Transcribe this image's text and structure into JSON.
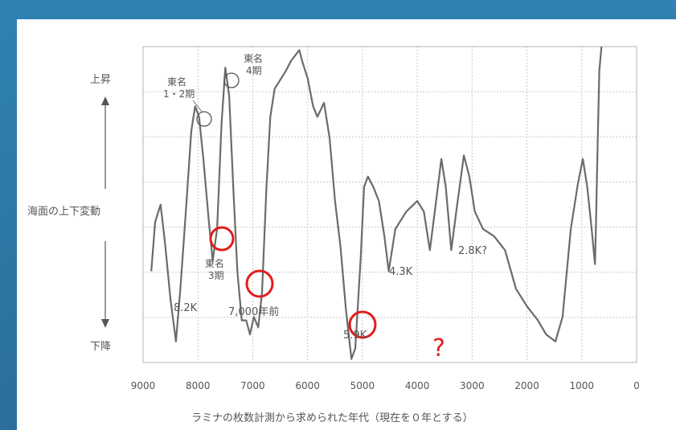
{
  "chart_data": {
    "type": "line",
    "xlabel": "ラミナの枚数計測から求められた年代（現在を０年とする）",
    "ylabel": "海面の上下変動",
    "y_top_label": "上昇",
    "y_bottom_label": "下降",
    "x_ticks": [
      "9000",
      "8000",
      "7000",
      "6000",
      "5000",
      "4000",
      "3000",
      "2000",
      "1000",
      "0"
    ],
    "x_reversed": true,
    "grid": true,
    "series": [
      {
        "values": [
          [
            8850,
            0.38
          ],
          [
            8780,
            0.52
          ],
          [
            8680,
            0.57
          ],
          [
            8600,
            0.46
          ],
          [
            8500,
            0.3
          ],
          [
            8400,
            0.18
          ],
          [
            8320,
            0.33
          ],
          [
            8220,
            0.55
          ],
          [
            8120,
            0.78
          ],
          [
            8050,
            0.85
          ],
          [
            7980,
            0.82
          ],
          [
            7900,
            0.7
          ],
          [
            7800,
            0.52
          ],
          [
            7730,
            0.41
          ],
          [
            7650,
            0.5
          ],
          [
            7570,
            0.8
          ],
          [
            7500,
            0.96
          ],
          [
            7430,
            0.88
          ],
          [
            7350,
            0.6
          ],
          [
            7280,
            0.38
          ],
          [
            7200,
            0.24
          ],
          [
            7120,
            0.24
          ],
          [
            7050,
            0.2
          ],
          [
            6980,
            0.25
          ],
          [
            6900,
            0.22
          ],
          [
            6830,
            0.32
          ],
          [
            6750,
            0.62
          ],
          [
            6680,
            0.82
          ],
          [
            6600,
            0.9
          ],
          [
            6520,
            0.92
          ],
          [
            6400,
            0.95
          ],
          [
            6300,
            0.98
          ],
          [
            6200,
            1.0
          ],
          [
            6150,
            1.01
          ],
          [
            6100,
            0.98
          ],
          [
            6000,
            0.93
          ],
          [
            5900,
            0.85
          ],
          [
            5820,
            0.82
          ],
          [
            5700,
            0.86
          ],
          [
            5600,
            0.76
          ],
          [
            5500,
            0.58
          ],
          [
            5400,
            0.45
          ],
          [
            5300,
            0.27
          ],
          [
            5200,
            0.13
          ],
          [
            5130,
            0.16
          ],
          [
            5030,
            0.42
          ],
          [
            4970,
            0.62
          ],
          [
            4900,
            0.65
          ],
          [
            4800,
            0.62
          ],
          [
            4700,
            0.58
          ],
          [
            4600,
            0.48
          ],
          [
            4520,
            0.38
          ],
          [
            4400,
            0.5
          ],
          [
            4200,
            0.55
          ],
          [
            4000,
            0.58
          ],
          [
            3880,
            0.55
          ],
          [
            3770,
            0.44
          ],
          [
            3680,
            0.55
          ],
          [
            3560,
            0.7
          ],
          [
            3480,
            0.62
          ],
          [
            3380,
            0.44
          ],
          [
            3280,
            0.56
          ],
          [
            3150,
            0.71
          ],
          [
            3050,
            0.65
          ],
          [
            2950,
            0.55
          ],
          [
            2800,
            0.5
          ],
          [
            2600,
            0.48
          ],
          [
            2400,
            0.44
          ],
          [
            2200,
            0.33
          ],
          [
            2000,
            0.28
          ],
          [
            1800,
            0.24
          ],
          [
            1650,
            0.2
          ],
          [
            1480,
            0.18
          ],
          [
            1350,
            0.25
          ],
          [
            1200,
            0.5
          ],
          [
            1070,
            0.63
          ],
          [
            980,
            0.7
          ],
          [
            900,
            0.62
          ],
          [
            820,
            0.5
          ],
          [
            760,
            0.4
          ],
          [
            740,
            0.52
          ],
          [
            710,
            0.75
          ],
          [
            680,
            0.95
          ],
          [
            640,
            1.2
          ]
        ]
      }
    ],
    "annotations": [
      {
        "text": "東名\n1・2期",
        "x": 8050,
        "circle": "black"
      },
      {
        "text": "東名\n4期",
        "x": 7500,
        "circle": "black"
      },
      {
        "text": "東名\n3期",
        "x": 7730,
        "circle": "red"
      },
      {
        "text": "8.2K",
        "x": 8400
      },
      {
        "text": "7,000年前",
        "x": 7050,
        "circle": "red"
      },
      {
        "text": "5.9K",
        "x": 5200,
        "circle": "red"
      },
      {
        "text": "4.3K",
        "x": 4520
      },
      {
        "text": "2.8K?",
        "x": 2800
      },
      {
        "text": "?",
        "x": 3600,
        "color": "#e11d1d"
      }
    ]
  },
  "labels": {
    "y_top": "上昇",
    "y_mid": "海面の上下変動",
    "y_bottom": "下降",
    "ann_tomei12_a": "東名",
    "ann_tomei12_b": "1・2期",
    "ann_tomei4_a": "東名",
    "ann_tomei4_b": "4期",
    "ann_tomei3_a": "東名",
    "ann_tomei3_b": "3期",
    "ann_82k": "8.2K",
    "ann_7000": "7,000年前",
    "ann_59k": "5.9K",
    "ann_43k": "4.3K",
    "ann_28k": "2.8K?",
    "ann_question": "?",
    "x_title": "ラミナの枚数計測から求められた年代（現在を０年とする）"
  },
  "colors": {
    "line": "#6b6b6b",
    "grid": "#c8c8c8",
    "red_circle": "#e11d1d",
    "text": "#555555"
  }
}
